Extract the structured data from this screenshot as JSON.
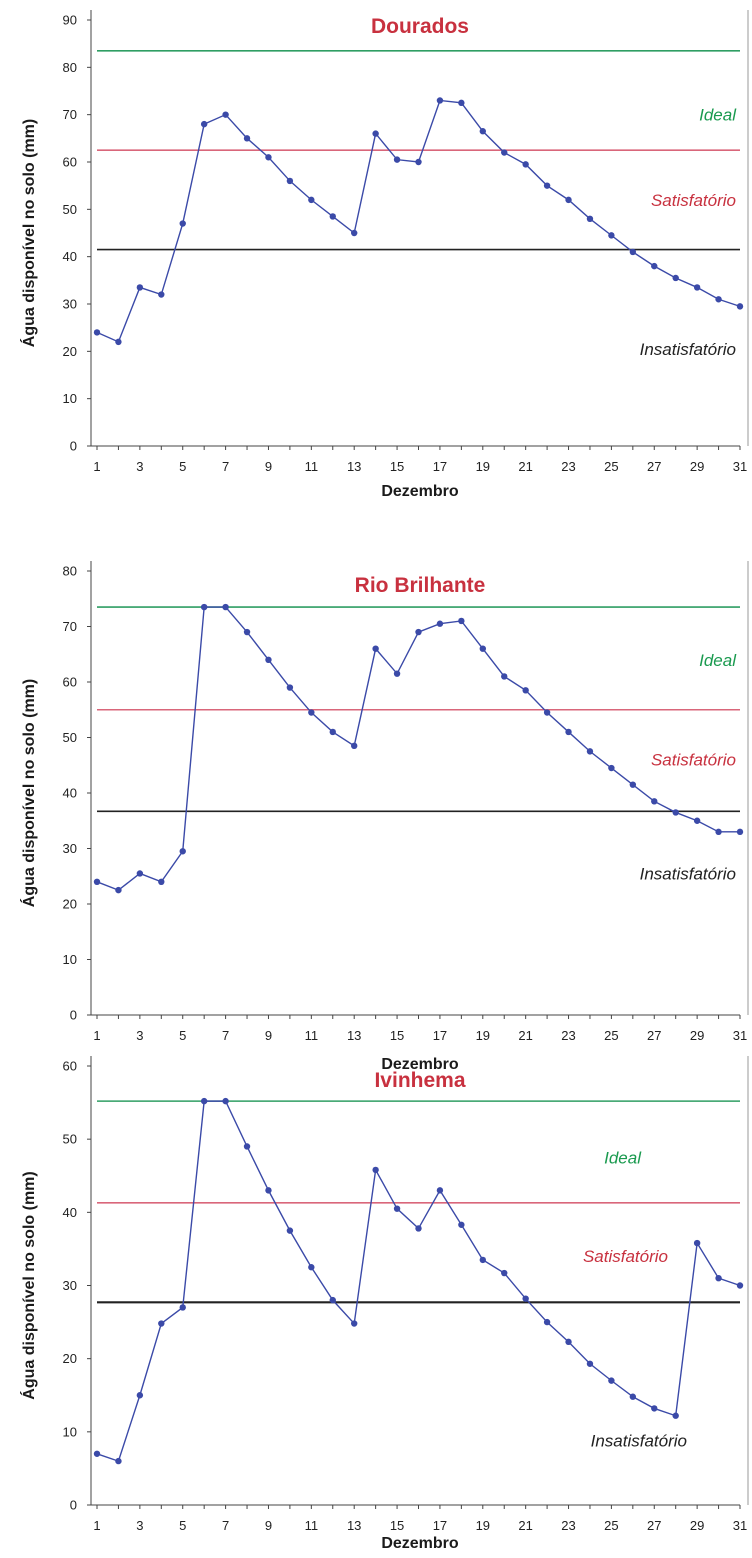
{
  "colors": {
    "series": "#3b4aa8",
    "ideal": "#2f9e63",
    "satisfactory": "#d9667a",
    "insatisfactory_line": "#222222",
    "title": "#c8313f",
    "ideal_label": "#1a9a4f",
    "satisfactory_label": "#c8313f",
    "insatisfactory_label": "#222222"
  },
  "chart_data": [
    {
      "type": "line",
      "title": "Dourados",
      "xlabel": "Dezembro",
      "ylabel": "Água disponível no solo (mm)",
      "xlim": [
        1,
        31
      ],
      "ylim": [
        0,
        90
      ],
      "yticks": [
        0,
        10,
        20,
        30,
        40,
        50,
        60,
        70,
        80,
        90
      ],
      "xtick_labels": [
        "1",
        "3",
        "5",
        "7",
        "9",
        "11",
        "13",
        "15",
        "17",
        "19",
        "21",
        "23",
        "25",
        "27",
        "29",
        "31"
      ],
      "thresholds": [
        {
          "label": "Ideal",
          "value": 83.5,
          "key": "ideal"
        },
        {
          "label": "Satisfatório",
          "value": 62.5,
          "key": "satisfactory"
        },
        {
          "label": "Insatisfatório",
          "value": 41.5,
          "key": "insatisfactory"
        }
      ],
      "zone_labels": [
        {
          "text": "Ideal",
          "key": "ideal_label",
          "y": 70
        },
        {
          "text": "Satisfatório",
          "key": "satisfactory_label",
          "y": 52
        },
        {
          "text": "Insatisfatório",
          "key": "insatisfactory_label",
          "y": 20.5
        }
      ],
      "series": [
        {
          "x": [
            1,
            2,
            3,
            4,
            5,
            6,
            7,
            8,
            9,
            10,
            11,
            12,
            13,
            14,
            15,
            16,
            17,
            18,
            19,
            20,
            21,
            22,
            23,
            24,
            25,
            26,
            27,
            28,
            29,
            30,
            31
          ],
          "values": [
            24,
            22,
            33.5,
            32,
            47,
            68,
            70,
            65,
            61,
            56,
            52,
            48.5,
            45,
            66,
            60.5,
            60,
            73,
            72.5,
            66.5,
            62,
            59.5,
            55,
            52,
            48,
            44.5,
            41,
            38,
            35.5,
            33.5,
            31,
            29.5
          ]
        }
      ]
    },
    {
      "type": "line",
      "title": "Rio Brilhante",
      "xlabel": "Dezembro",
      "ylabel": "Água disponível no solo (mm)",
      "xlim": [
        1,
        31
      ],
      "ylim": [
        0,
        80
      ],
      "yticks": [
        0,
        10,
        20,
        30,
        40,
        50,
        60,
        70,
        80
      ],
      "xtick_labels": [
        "1",
        "3",
        "5",
        "7",
        "9",
        "11",
        "13",
        "15",
        "17",
        "19",
        "21",
        "23",
        "25",
        "27",
        "29",
        "31"
      ],
      "thresholds": [
        {
          "label": "Ideal",
          "value": 73.5,
          "key": "ideal"
        },
        {
          "label": "Satisfatório",
          "value": 55,
          "key": "satisfactory"
        },
        {
          "label": "Insatisfatório",
          "value": 36.7,
          "key": "insatisfactory"
        }
      ],
      "zone_labels": [
        {
          "text": "Ideal",
          "key": "ideal_label",
          "y": 64
        },
        {
          "text": "Satisfatório",
          "key": "satisfactory_label",
          "y": 46
        },
        {
          "text": "Insatisfatório",
          "key": "insatisfactory_label",
          "y": 25.5
        }
      ],
      "series": [
        {
          "x": [
            1,
            2,
            3,
            4,
            5,
            6,
            7,
            8,
            9,
            10,
            11,
            12,
            13,
            14,
            15,
            16,
            17,
            18,
            19,
            20,
            21,
            22,
            23,
            24,
            25,
            26,
            27,
            28,
            29,
            30,
            31
          ],
          "values": [
            24,
            22.5,
            25.5,
            24,
            29.5,
            73.5,
            73.5,
            69,
            64,
            59,
            54.5,
            51,
            48.5,
            66,
            61.5,
            69,
            70.5,
            71,
            66,
            61,
            58.5,
            54.5,
            51,
            47.5,
            44.5,
            41.5,
            38.5,
            36.5,
            35,
            33,
            33
          ]
        }
      ]
    },
    {
      "type": "line",
      "title": "Ivinhema",
      "xlabel": "Dezembro",
      "ylabel": "Água disponível no solo (mm)",
      "xlim": [
        1,
        31
      ],
      "ylim": [
        0,
        60
      ],
      "yticks": [
        0,
        10,
        20,
        30,
        40,
        50,
        60
      ],
      "xtick_labels": [
        "1",
        "3",
        "5",
        "7",
        "9",
        "11",
        "13",
        "15",
        "17",
        "19",
        "21",
        "23",
        "25",
        "27",
        "29",
        "31"
      ],
      "thresholds": [
        {
          "label": "Ideal",
          "value": 55.2,
          "key": "ideal"
        },
        {
          "label": "Satisfatório",
          "value": 41.3,
          "key": "satisfactory"
        },
        {
          "label": "Insatisfatório",
          "value": 27.7,
          "key": "insatisfactory"
        }
      ],
      "zone_labels": [
        {
          "text": "Ideal",
          "key": "ideal_label",
          "y": 47.5
        },
        {
          "text": "Satisfatório",
          "key": "satisfactory_label",
          "y": 34
        },
        {
          "text": "Insatisfatório",
          "key": "insatisfactory_label",
          "y": 8.8
        }
      ],
      "series": [
        {
          "x": [
            1,
            2,
            3,
            4,
            5,
            6,
            7,
            8,
            9,
            10,
            11,
            12,
            13,
            14,
            15,
            16,
            17,
            18,
            19,
            20,
            21,
            22,
            23,
            24,
            25,
            26,
            27,
            28,
            29,
            30,
            31
          ],
          "values": [
            7,
            6,
            15,
            24.8,
            27,
            55.2,
            55.2,
            49,
            43,
            37.5,
            32.5,
            28,
            24.8,
            45.8,
            40.5,
            37.8,
            43,
            38.3,
            33.5,
            31.7,
            28.2,
            25,
            22.3,
            19.3,
            17,
            14.8,
            13.2,
            12.2,
            35.8,
            31,
            30
          ]
        }
      ]
    }
  ]
}
